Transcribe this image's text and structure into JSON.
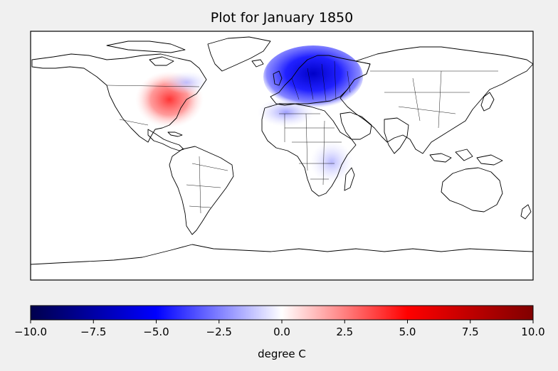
{
  "title": "Plot for January 1850",
  "map": {
    "projection": "plate-carree",
    "colormap": "seismic",
    "land_fill": "#ffffff",
    "coastline_color": "#000000",
    "anomaly_regions": [
      {
        "name": "Eastern North America",
        "sign": "positive",
        "peak_anomaly": 4.5
      },
      {
        "name": "Canada / Hudson region",
        "sign": "negative",
        "peak_anomaly": -1.5
      },
      {
        "name": "Northern Europe",
        "sign": "negative",
        "peak_anomaly": -7.0
      },
      {
        "name": "North Africa",
        "sign": "negative",
        "peak_anomaly": -2.5
      },
      {
        "name": "East Africa",
        "sign": "negative",
        "peak_anomaly": -1.8
      }
    ]
  },
  "colorbar": {
    "label": "degree C",
    "min": -10.0,
    "max": 10.0,
    "ticks": [
      "−10.0",
      "−7.5",
      "−5.0",
      "−2.5",
      "0.0",
      "2.5",
      "5.0",
      "7.5",
      "10.0"
    ],
    "colors": [
      "#00004c",
      "#0000ff",
      "#ffffff",
      "#ff0000",
      "#800000"
    ]
  }
}
